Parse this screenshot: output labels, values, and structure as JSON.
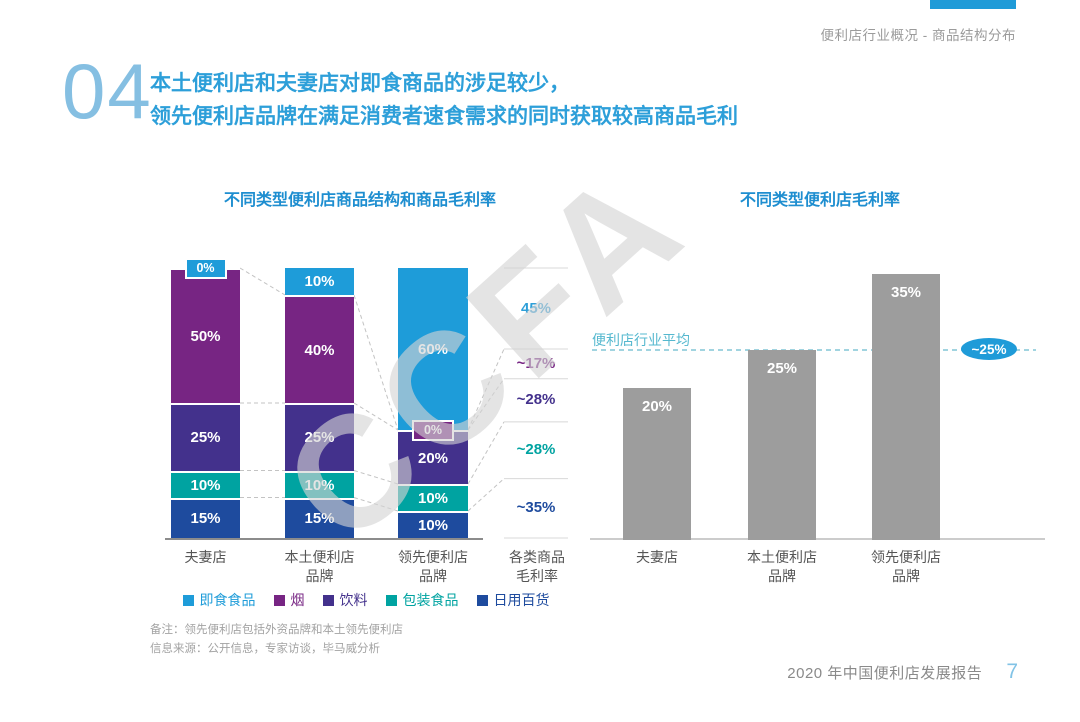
{
  "header": {
    "breadcrumb": "便利店行业概况 - 商品结构分布"
  },
  "title": {
    "number": "04",
    "line1": "本土便利店和夫妻店对即食商品的涉足较少，",
    "line2": "领先便利店品牌在满足消费者速食需求的同时获取较高商品毛利"
  },
  "watermark": "CCFA",
  "colors": {
    "accent_blue": "#1f9bd8",
    "title_blue": "#2d9fd9",
    "chart_title_blue": "#1e8ed0",
    "gray_bar": "#9d9d9d"
  },
  "chart_data": [
    {
      "type": "stacked-bar",
      "title": "不同类型便利店商品结构和商品毛利率",
      "categories": [
        "夫妻店",
        "本土便利店\n品牌",
        "领先便利店\n品牌"
      ],
      "unit": "%",
      "ylim": [
        0,
        100
      ],
      "series": [
        {
          "name": "即食食品",
          "color": "#1e9cd9",
          "values": [
            0,
            10,
            60
          ],
          "margin": "45%",
          "margin_color": "#2e9fd8"
        },
        {
          "name": "烟",
          "color": "#772583",
          "values": [
            50,
            40,
            0
          ],
          "margin": "~17%",
          "margin_color": "#772583"
        },
        {
          "name": "饮料",
          "color": "#43318c",
          "values": [
            25,
            25,
            20
          ],
          "margin": "~28%",
          "margin_color": "#43318c"
        },
        {
          "name": "包装食品",
          "color": "#00a3a1",
          "values": [
            10,
            10,
            10
          ],
          "margin": "~28%",
          "margin_color": "#00a3a1"
        },
        {
          "name": "日用百货",
          "color": "#1e4b9e",
          "values": [
            15,
            15,
            10
          ],
          "margin": "~35%",
          "margin_color": "#1e4b9e"
        }
      ],
      "margin_column_label": "各类商品\n毛利率"
    },
    {
      "type": "bar",
      "title": "不同类型便利店毛利率",
      "categories": [
        "夫妻店",
        "本土便利店\n品牌",
        "领先便利店\n品牌"
      ],
      "values": [
        20,
        25,
        35
      ],
      "value_labels": [
        "20%",
        "25%",
        "35%"
      ],
      "unit": "%",
      "bar_color": "#9d9d9d",
      "average_line": {
        "label": "便利店行业平均",
        "value": 25,
        "badge": "~25%"
      }
    }
  ],
  "notes": [
    "备注：领先便利店包括外资品牌和本土领先便利店",
    "信息来源：公开信息，专家访谈，毕马威分析"
  ],
  "footer": {
    "report": "2020 年中国便利店发展报告",
    "page": "7"
  }
}
